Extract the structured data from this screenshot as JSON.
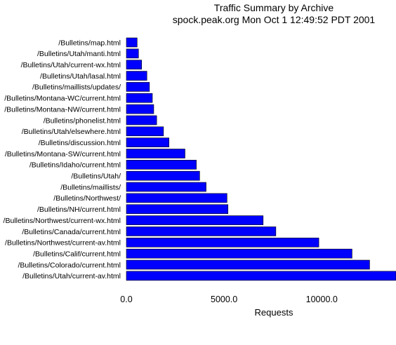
{
  "chart_data": {
    "type": "bar",
    "orientation": "horizontal",
    "title": "Traffic Summary by Archive",
    "subtitle": "spock.peak.org Mon Oct  1 12:49:52 PDT 2001",
    "xlabel": "Requests",
    "ylabel": "",
    "xlim": [
      0,
      13800
    ],
    "xticks": [
      0,
      5000,
      10000
    ],
    "xtick_labels": [
      "0.0",
      "5000.0",
      "10000.0"
    ],
    "bar_color": "#0000ff",
    "grid": false,
    "categories": [
      "/Bulletins/map.html",
      "/Bulletins/Utah/manti.html",
      "/Bulletins/Utah/current-wx.html",
      "/Bulletins/Utah/lasal.html",
      "/Bulletins/maillists/updates/",
      "/Bulletins/Montana-WC/current.html",
      "/Bulletins/Montana-NW/current.html",
      "/Bulletins/phonelist.html",
      "/Bulletins/Utah/elsewhere.html",
      "/Bulletins/discussion.html",
      "/Bulletins/Montana-SW/current.html",
      "/Bulletins/Idaho/current.html",
      "/Bulletins/Utah/",
      "/Bulletins/maillists/",
      "/Bulletins/Northwest/",
      "/Bulletins/NH/current.html",
      "/Bulletins/Northwest/current-wx.html",
      "/Bulletins/Canada/current.html",
      "/Bulletins/Northwest/current-av.html",
      "/Bulletins/Calif/current.html",
      "/Bulletins/Colorado/current.html",
      "/Bulletins/Utah/current-av.html"
    ],
    "values": [
      550,
      620,
      780,
      1050,
      1180,
      1330,
      1400,
      1550,
      1900,
      2180,
      3000,
      3580,
      3750,
      4080,
      5150,
      5200,
      7000,
      7650,
      9850,
      11550,
      12450,
      13800
    ]
  }
}
